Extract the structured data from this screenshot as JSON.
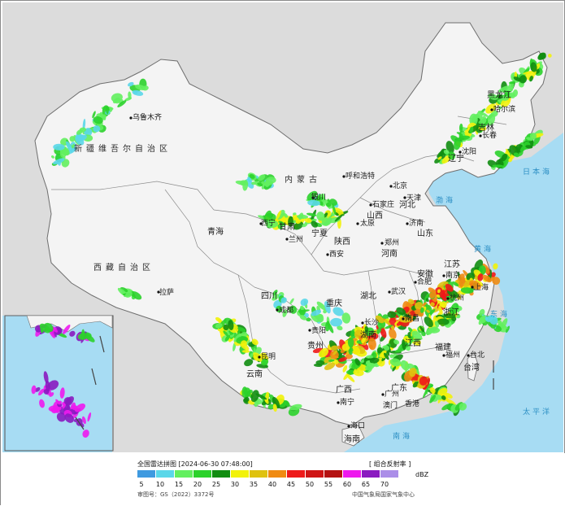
{
  "title": "全国雷达拼图",
  "timestamp_text": "[2024-06-30 07:48:00]",
  "product": "[ 组合反射率 ]",
  "unit": "dBZ",
  "approval_text": "审图号：GS（2022）3372号",
  "credit_text": "中国气象局国家气象中心",
  "legend": {
    "colors": [
      "#3f9ae0",
      "#5ad7e9",
      "#63ef5f",
      "#2bd22b",
      "#118d11",
      "#f2f20a",
      "#dfc20f",
      "#f08b12",
      "#ee1a1a",
      "#cf1515",
      "#b51212",
      "#ee19ee",
      "#8a1ac0",
      "#ab8ee8"
    ],
    "ticks": [
      "5",
      "10",
      "15",
      "20",
      "25",
      "30",
      "35",
      "40",
      "45",
      "50",
      "55",
      "60",
      "65",
      "70"
    ]
  },
  "map_labels": {
    "regions": {
      "xinjiang": "新疆维吾尔自治区",
      "xizang": "西藏自治区",
      "neimenggu": "内蒙古",
      "qinghai": "青海",
      "gansu": "甘肃",
      "sichuan": "四川",
      "yunnan": "云南",
      "guizhou": "贵州",
      "heilongjiang": "黑龙江",
      "jilin": "吉林",
      "liaoning": "辽宁",
      "hebei": "河北",
      "shanxi": "山西",
      "shaanxi": "陕西",
      "henan": "河南",
      "shandong": "山东",
      "hubei": "湖北",
      "hunan": "湖南",
      "jiangxi": "江西",
      "anhui": "安徽",
      "jiangsu": "江苏",
      "zhejiang": "浙江",
      "fujian": "福建",
      "guangdong": "广东",
      "guangxi": "广西",
      "taiwan": "台湾",
      "hainan": "海南",
      "ningxia": "宁夏",
      "chongqing": "重庆"
    },
    "cities": {
      "urumqi": "乌鲁木齐",
      "lasa": "拉萨",
      "xining": "西宁",
      "lanzhou": "兰州",
      "yinchuan": "银川",
      "huhehaote": "呼和浩特",
      "beijing": "北京",
      "tianjin": "天津",
      "shijiazhuang": "石家庄",
      "taiyuan": "太原",
      "jinan": "济南",
      "zhengzhou": "郑州",
      "xian": "西安",
      "chengdu": "成都",
      "kunming": "昆明",
      "guiyang": "贵阳",
      "changsha": "长沙",
      "wuhan": "武汉",
      "hefei": "合肥",
      "nanjing": "南京",
      "shanghai": "上海",
      "hangzhou": "杭州",
      "nanchang": "南昌",
      "fuzhou": "福州",
      "taibei": "台北",
      "guangzhou": "广州",
      "nanning": "南宁",
      "haikou": "海口",
      "shenyang": "沈阳",
      "changchun": "长春",
      "haerbin": "哈尔滨",
      "hongkong": "香港",
      "macau": "澳门"
    },
    "seas": {
      "bohai": "渤海",
      "huanghai": "黄海",
      "donghai": "东海",
      "taipingyang": "太平洋",
      "nanhai": "南海",
      "riben": "日本海"
    }
  }
}
